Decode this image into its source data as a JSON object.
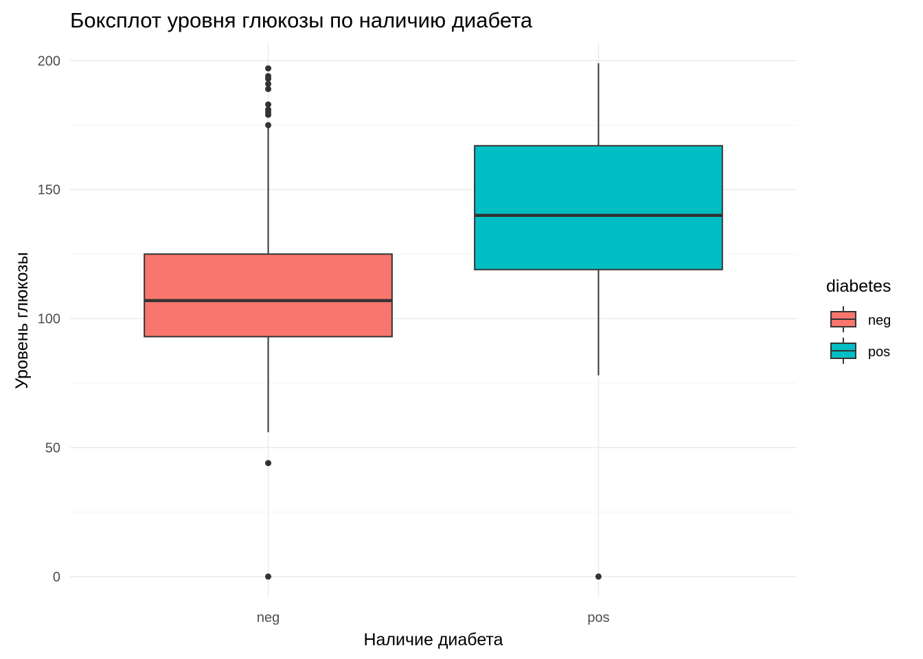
{
  "chart_data": {
    "type": "boxplot",
    "title": "Боксплот уровня глюкозы по наличию диабета",
    "xlabel": "Наличие диабета",
    "ylabel": "Уровень глюкозы",
    "ylim": [
      -8,
      207
    ],
    "yticks": [
      0,
      50,
      100,
      150,
      200
    ],
    "grid": true,
    "legend": {
      "title": "diabetes",
      "position": "right",
      "entries": [
        "neg",
        "pos"
      ]
    },
    "categories": [
      "neg",
      "pos"
    ],
    "colors": {
      "neg": "#F8766D",
      "pos": "#00BFC4",
      "outline": "#333333"
    },
    "boxes": [
      {
        "category": "neg",
        "whisker_low": 56,
        "q1": 93,
        "median": 107,
        "q3": 125,
        "whisker_high": 175,
        "outliers": [
          0,
          44,
          175,
          179,
          180,
          181,
          183,
          189,
          191,
          193,
          194,
          197
        ]
      },
      {
        "category": "pos",
        "whisker_low": 78,
        "q1": 119,
        "median": 140,
        "q3": 167,
        "whisker_high": 199,
        "outliers": [
          0
        ]
      }
    ]
  }
}
